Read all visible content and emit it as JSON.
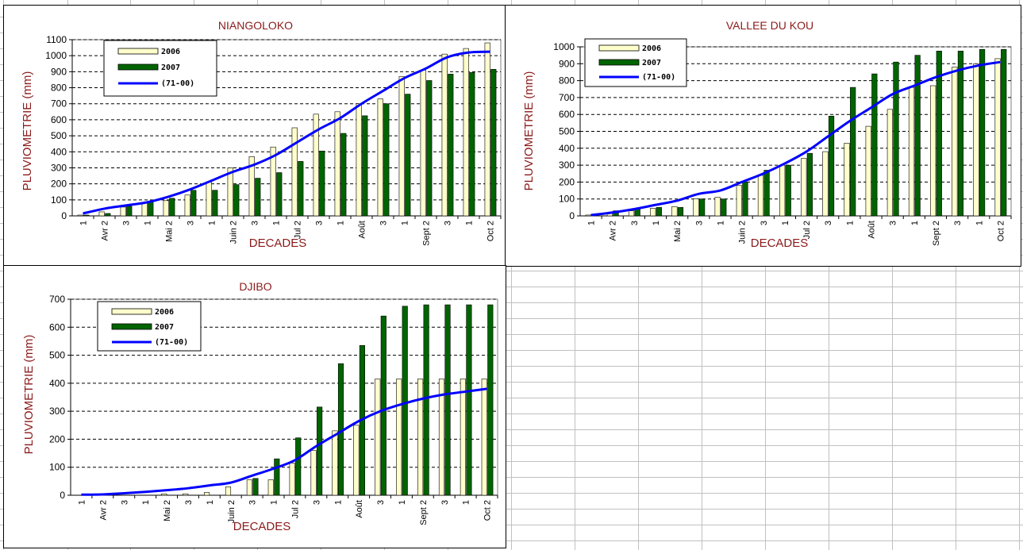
{
  "spreadsheet": {
    "grid_color": "#c0c0c0"
  },
  "chart_data": [
    {
      "type": "bar",
      "title": "NIANGOLOKO",
      "xlabel": "DECADES",
      "ylabel": "PLUVIOMETRIE (mm)",
      "ylim": [
        0,
        1100
      ],
      "yticks": [
        0,
        100,
        200,
        300,
        400,
        500,
        600,
        700,
        800,
        900,
        1000,
        1100
      ],
      "grid": true,
      "legend_position": "top-left",
      "categories": [
        "1",
        "Avr 2",
        "3",
        "1",
        "Mai 2",
        "3",
        "1",
        "Juin 2",
        "3",
        "1",
        "Jul 2",
        "3",
        "1",
        "Août",
        "3",
        "1",
        "Sept 2",
        "3",
        "1",
        "Oct 2"
      ],
      "series": [
        {
          "name": "2006",
          "kind": "bar",
          "color": "#FFFFCC",
          "values": [
            5,
            25,
            55,
            80,
            95,
            130,
            210,
            300,
            370,
            430,
            550,
            635,
            650,
            700,
            730,
            870,
            910,
            1010,
            1045,
            1080
          ]
        },
        {
          "name": "2007",
          "kind": "bar",
          "color": "#006400",
          "values": [
            5,
            15,
            60,
            90,
            110,
            160,
            160,
            195,
            235,
            270,
            340,
            405,
            515,
            625,
            700,
            760,
            845,
            885,
            895,
            915
          ]
        },
        {
          "name": "(71-00)",
          "kind": "line",
          "color": "#0000FF",
          "values": [
            15,
            45,
            65,
            85,
            120,
            165,
            220,
            275,
            320,
            380,
            460,
            540,
            610,
            700,
            780,
            860,
            920,
            990,
            1020,
            1025
          ]
        }
      ]
    },
    {
      "type": "bar",
      "title": "VALLEE DU KOU",
      "xlabel": "DECADES",
      "ylabel": "PLUVIOMETRIE (mm)",
      "ylim": [
        0,
        1000
      ],
      "yticks": [
        0,
        100,
        200,
        300,
        400,
        500,
        600,
        700,
        800,
        900,
        1000
      ],
      "grid": true,
      "legend_position": "top-left",
      "categories": [
        "1",
        "Avr 2",
        "3",
        "1",
        "Mai 2",
        "3",
        "1",
        "Juin 2",
        "3",
        "1",
        "Jul 2",
        "3",
        "1",
        "Août",
        "3",
        "1",
        "Sept 2",
        "3",
        "1",
        "Oct 2"
      ],
      "series": [
        {
          "name": "2006",
          "kind": "bar",
          "color": "#FFFFCC",
          "values": [
            5,
            15,
            30,
            45,
            55,
            100,
            110,
            180,
            240,
            300,
            340,
            380,
            430,
            530,
            630,
            760,
            770,
            880,
            900,
            930
          ]
        },
        {
          "name": "2007",
          "kind": "bar",
          "color": "#006400",
          "values": [
            10,
            30,
            40,
            50,
            50,
            100,
            100,
            200,
            270,
            300,
            370,
            590,
            760,
            840,
            910,
            950,
            975,
            975,
            985,
            985
          ]
        },
        {
          "name": "(71-00)",
          "kind": "line",
          "color": "#0000FF",
          "values": [
            5,
            20,
            40,
            65,
            90,
            130,
            150,
            200,
            250,
            310,
            380,
            470,
            560,
            640,
            720,
            770,
            820,
            860,
            890,
            910
          ]
        }
      ]
    },
    {
      "type": "bar",
      "title": "DJIBO",
      "xlabel": "DECADES",
      "ylabel": "PLUVIOMETRIE (mm)",
      "ylim": [
        0,
        700
      ],
      "yticks": [
        0,
        100,
        200,
        300,
        400,
        500,
        600,
        700
      ],
      "grid": true,
      "legend_position": "top-left",
      "categories": [
        "1",
        "Avr 2",
        "3",
        "1",
        "Mai 2",
        "3",
        "1",
        "Juin 2",
        "3",
        "1",
        "Jul 2",
        "3",
        "1",
        "Août",
        "3",
        "1",
        "Sept 2",
        "3",
        "1",
        "Oct 2"
      ],
      "series": [
        {
          "name": "2006",
          "kind": "bar",
          "color": "#FFFFCC",
          "values": [
            0,
            0,
            0,
            0,
            5,
            5,
            10,
            30,
            55,
            55,
            115,
            160,
            230,
            250,
            415,
            415,
            415,
            415,
            415,
            415
          ]
        },
        {
          "name": "2007",
          "kind": "bar",
          "color": "#006400",
          "values": [
            0,
            0,
            0,
            0,
            0,
            0,
            0,
            0,
            60,
            130,
            205,
            315,
            470,
            535,
            640,
            675,
            680,
            680,
            680,
            680
          ]
        },
        {
          "name": "(71-00)",
          "kind": "line",
          "color": "#0000FF",
          "values": [
            2,
            3,
            7,
            12,
            18,
            25,
            35,
            45,
            70,
            95,
            125,
            175,
            220,
            265,
            300,
            325,
            345,
            360,
            370,
            380
          ]
        }
      ]
    }
  ]
}
